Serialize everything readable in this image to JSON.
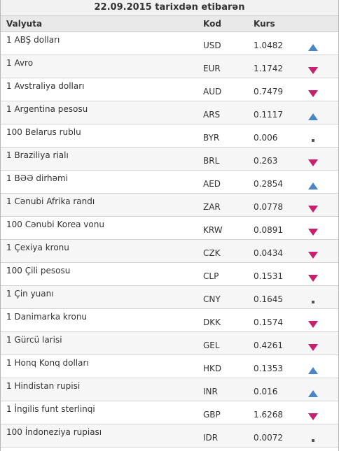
{
  "date_header": "22.09.2015 tarixdən etibarən",
  "columns": {
    "currency": "Valyuta",
    "code": "Kod",
    "rate": "Kurs"
  },
  "colors": {
    "up": "#4a86c5",
    "down": "#c8206a",
    "flat": "#555555"
  },
  "rows": [
    {
      "name": "1 ABŞ dolları",
      "code": "USD",
      "rate": "1.0482",
      "trend": "up"
    },
    {
      "name": "1 Avro",
      "code": "EUR",
      "rate": "1.1742",
      "trend": "down"
    },
    {
      "name": "1 Avstraliya dolları",
      "code": "AUD",
      "rate": "0.7479",
      "trend": "down"
    },
    {
      "name": "1 Argentina pesosu",
      "code": "ARS",
      "rate": "0.1117",
      "trend": "up"
    },
    {
      "name": "100 Belarus rublu",
      "code": "BYR",
      "rate": "0.006",
      "trend": "flat"
    },
    {
      "name": "1 Braziliya rialı",
      "code": "BRL",
      "rate": "0.263",
      "trend": "down"
    },
    {
      "name": "1 BƏƏ dirhəmi",
      "code": "AED",
      "rate": "0.2854",
      "trend": "up"
    },
    {
      "name": "1 Cənubi Afrika randı",
      "code": "ZAR",
      "rate": "0.0778",
      "trend": "down"
    },
    {
      "name": "100 Cənubi Korea vonu",
      "code": "KRW",
      "rate": "0.0891",
      "trend": "down"
    },
    {
      "name": "1 Çexiya kronu",
      "code": "CZK",
      "rate": "0.0434",
      "trend": "down"
    },
    {
      "name": "100 Çili pesosu",
      "code": "CLP",
      "rate": "0.1531",
      "trend": "down"
    },
    {
      "name": "1 Çin yuanı",
      "code": "CNY",
      "rate": "0.1645",
      "trend": "flat"
    },
    {
      "name": "1 Danimarka kronu",
      "code": "DKK",
      "rate": "0.1574",
      "trend": "down"
    },
    {
      "name": "1 Gürcü larisi",
      "code": "GEL",
      "rate": "0.4261",
      "trend": "down"
    },
    {
      "name": "1 Honq Konq dolları",
      "code": "HKD",
      "rate": "0.1353",
      "trend": "up"
    },
    {
      "name": "1 Hindistan rupisi",
      "code": "INR",
      "rate": "0.016",
      "trend": "up"
    },
    {
      "name": "1 İngilis funt sterlinqi",
      "code": "GBP",
      "rate": "1.6268",
      "trend": "down"
    },
    {
      "name": "100 İndoneziya rupiası",
      "code": "IDR",
      "rate": "0.0072",
      "trend": "flat"
    }
  ]
}
